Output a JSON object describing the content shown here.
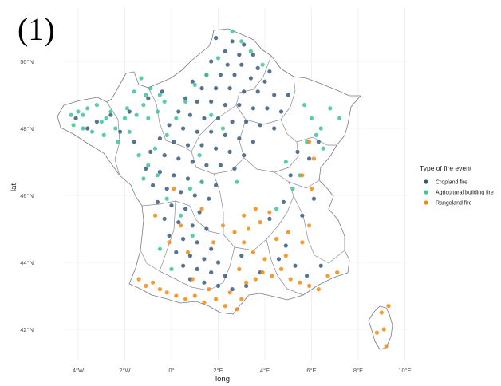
{
  "panel_tag": "(1)",
  "colors": {
    "cropland": "#3a5a7c",
    "agricultural_building": "#3cc49a",
    "rangeland": "#f28a0d",
    "border": "#7a7a8a",
    "grid": "#ebebeb"
  },
  "chart_data": {
    "type": "scatter",
    "map_region": "France",
    "xlabel": "long",
    "ylabel": "lat",
    "xlim": [
      -6,
      10
    ],
    "ylim": [
      41,
      51
    ],
    "x_ticks": [
      {
        "value": -4,
        "label": "4°W"
      },
      {
        "value": -2,
        "label": "2°W"
      },
      {
        "value": 0,
        "label": "0°"
      },
      {
        "value": 2,
        "label": "2°E"
      },
      {
        "value": 4,
        "label": "4°E"
      },
      {
        "value": 6,
        "label": "6°E"
      },
      {
        "value": 8,
        "label": "8°E"
      },
      {
        "value": 10,
        "label": "10°E"
      }
    ],
    "y_ticks": [
      {
        "value": 42,
        "label": "42°N"
      },
      {
        "value": 44,
        "label": "44°N"
      },
      {
        "value": 46,
        "label": "46°N"
      },
      {
        "value": 48,
        "label": "48°N"
      },
      {
        "value": 50,
        "label": "50°N"
      }
    ],
    "grid": true,
    "legend": {
      "title": "Type of fire event",
      "placement": "right",
      "entries": [
        {
          "label": "Cropland fire",
          "color": "#3a5a7c"
        },
        {
          "label": "Agricultural building fire",
          "color": "#3cc49a"
        },
        {
          "label": "Rangeland fire",
          "color": "#f28a0d"
        }
      ]
    },
    "series": [
      {
        "name": "Cropland fire",
        "color": "#3a5a7c",
        "points": [
          [
            1.9,
            50.7
          ],
          [
            2.6,
            50.6
          ],
          [
            3.1,
            50.5
          ],
          [
            2.3,
            50.3
          ],
          [
            2.9,
            50.2
          ],
          [
            3.5,
            50.2
          ],
          [
            1.7,
            50.0
          ],
          [
            2.4,
            49.9
          ],
          [
            3.0,
            49.9
          ],
          [
            3.7,
            49.8
          ],
          [
            4.2,
            49.7
          ],
          [
            1.5,
            49.6
          ],
          [
            2.1,
            49.6
          ],
          [
            2.7,
            49.6
          ],
          [
            3.4,
            49.5
          ],
          [
            4.0,
            49.4
          ],
          [
            0.9,
            49.4
          ],
          [
            1.3,
            49.2
          ],
          [
            1.9,
            49.2
          ],
          [
            2.5,
            49.2
          ],
          [
            3.1,
            49.1
          ],
          [
            3.7,
            49.1
          ],
          [
            4.4,
            49.0
          ],
          [
            5.0,
            49.0
          ],
          [
            0.6,
            48.9
          ],
          [
            1.1,
            48.8
          ],
          [
            1.7,
            48.8
          ],
          [
            2.3,
            48.7
          ],
          [
            2.9,
            48.7
          ],
          [
            3.5,
            48.6
          ],
          [
            4.1,
            48.6
          ],
          [
            4.7,
            48.5
          ],
          [
            0.3,
            48.5
          ],
          [
            0.8,
            48.4
          ],
          [
            1.4,
            48.3
          ],
          [
            2.0,
            48.3
          ],
          [
            2.6,
            48.2
          ],
          [
            3.2,
            48.2
          ],
          [
            3.8,
            48.1
          ],
          [
            4.4,
            48.0
          ],
          [
            -0.1,
            48.1
          ],
          [
            0.5,
            48.0
          ],
          [
            1.1,
            47.9
          ],
          [
            1.7,
            47.9
          ],
          [
            2.3,
            47.8
          ],
          [
            2.9,
            47.7
          ],
          [
            3.5,
            47.6
          ],
          [
            -0.5,
            47.7
          ],
          [
            0.1,
            47.6
          ],
          [
            0.7,
            47.5
          ],
          [
            1.3,
            47.5
          ],
          [
            1.9,
            47.4
          ],
          [
            2.5,
            47.3
          ],
          [
            3.1,
            47.2
          ],
          [
            -0.9,
            47.3
          ],
          [
            -0.3,
            47.2
          ],
          [
            0.3,
            47.1
          ],
          [
            0.9,
            47.0
          ],
          [
            1.5,
            46.9
          ],
          [
            2.1,
            46.9
          ],
          [
            2.7,
            46.8
          ],
          [
            -1.1,
            46.8
          ],
          [
            -0.5,
            46.7
          ],
          [
            0.1,
            46.6
          ],
          [
            0.7,
            46.5
          ],
          [
            1.3,
            46.4
          ],
          [
            1.9,
            46.3
          ],
          [
            -0.8,
            46.3
          ],
          [
            -0.2,
            46.2
          ],
          [
            0.4,
            46.1
          ],
          [
            1.0,
            46.0
          ],
          [
            1.6,
            45.9
          ],
          [
            -0.6,
            45.8
          ],
          [
            0.0,
            45.7
          ],
          [
            0.6,
            45.6
          ],
          [
            1.2,
            45.5
          ],
          [
            -0.3,
            45.3
          ],
          [
            0.3,
            45.2
          ],
          [
            0.9,
            45.1
          ],
          [
            1.5,
            45.0
          ],
          [
            -0.1,
            44.8
          ],
          [
            0.5,
            44.7
          ],
          [
            1.1,
            44.6
          ],
          [
            1.7,
            44.4
          ],
          [
            0.2,
            44.3
          ],
          [
            0.8,
            44.2
          ],
          [
            1.4,
            44.1
          ],
          [
            2.0,
            44.0
          ],
          [
            0.5,
            43.9
          ],
          [
            1.1,
            43.8
          ],
          [
            1.7,
            43.7
          ],
          [
            2.3,
            43.6
          ],
          [
            0.8,
            43.5
          ],
          [
            1.4,
            43.4
          ],
          [
            2.0,
            43.3
          ],
          [
            2.6,
            43.2
          ],
          [
            3.2,
            43.3
          ],
          [
            5.4,
            47.3
          ],
          [
            5.9,
            47.1
          ],
          [
            6.3,
            47.6
          ],
          [
            5.1,
            46.6
          ],
          [
            4.8,
            45.8
          ],
          [
            4.2,
            45.3
          ],
          [
            5.6,
            45.4
          ],
          [
            6.1,
            45.9
          ],
          [
            4.9,
            44.5
          ],
          [
            5.3,
            43.9
          ],
          [
            5.8,
            43.6
          ],
          [
            6.4,
            43.9
          ],
          [
            -2.6,
            48.4
          ],
          [
            -3.2,
            48.2
          ],
          [
            -1.8,
            48.5
          ],
          [
            -2.2,
            47.9
          ],
          [
            -1.6,
            47.6
          ],
          [
            -3.6,
            48.0
          ],
          [
            -4.1,
            48.3
          ],
          [
            -0.4,
            49.1
          ],
          [
            -1.0,
            48.9
          ],
          [
            4.6,
            44.1
          ],
          [
            3.8,
            43.7
          ],
          [
            3.0,
            44.2
          ]
        ]
      },
      {
        "name": "Agricultural building fire",
        "color": "#3cc49a",
        "points": [
          [
            -4.3,
            48.4
          ],
          [
            -4.0,
            48.5
          ],
          [
            -3.6,
            48.6
          ],
          [
            -3.2,
            48.7
          ],
          [
            -4.2,
            48.1
          ],
          [
            -3.8,
            48.0
          ],
          [
            -3.4,
            47.9
          ],
          [
            -3.0,
            48.2
          ],
          [
            -2.6,
            48.5
          ],
          [
            -2.9,
            47.8
          ],
          [
            -2.4,
            48.0
          ],
          [
            -2.0,
            48.3
          ],
          [
            -2.3,
            47.6
          ],
          [
            -1.8,
            47.9
          ],
          [
            -1.5,
            48.4
          ],
          [
            -1.2,
            48.7
          ],
          [
            -1.6,
            49.1
          ],
          [
            -1.3,
            49.5
          ],
          [
            -0.9,
            49.2
          ],
          [
            -0.5,
            49.0
          ],
          [
            -1.0,
            48.3
          ],
          [
            -0.6,
            48.5
          ],
          [
            -1.4,
            47.2
          ],
          [
            -1.0,
            46.9
          ],
          [
            -0.6,
            46.6
          ],
          [
            -1.2,
            46.5
          ],
          [
            -0.7,
            47.4
          ],
          [
            -0.2,
            47.8
          ],
          [
            0.2,
            48.3
          ],
          [
            0.6,
            48.8
          ],
          [
            1.0,
            49.3
          ],
          [
            1.5,
            49.6
          ],
          [
            2.0,
            50.1
          ],
          [
            2.6,
            50.9
          ],
          [
            3.0,
            50.6
          ],
          [
            3.4,
            50.3
          ],
          [
            3.9,
            49.9
          ],
          [
            1.2,
            47.2
          ],
          [
            0.8,
            46.2
          ],
          [
            1.7,
            48.4
          ],
          [
            2.2,
            48.0
          ],
          [
            -0.2,
            45.9
          ],
          [
            0.4,
            45.4
          ],
          [
            0.9,
            44.8
          ],
          [
            -0.5,
            44.4
          ],
          [
            0.0,
            43.8
          ],
          [
            6.0,
            48.3
          ],
          [
            6.4,
            48.0
          ],
          [
            6.8,
            48.6
          ],
          [
            7.2,
            48.3
          ],
          [
            6.2,
            47.8
          ],
          [
            5.8,
            47.6
          ],
          [
            6.5,
            47.4
          ],
          [
            5.7,
            48.7
          ],
          [
            4.9,
            47.0
          ],
          [
            5.5,
            46.6
          ],
          [
            5.2,
            46.2
          ],
          [
            4.5,
            45.6
          ],
          [
            1.3,
            46.4
          ],
          [
            2.8,
            46.4
          ],
          [
            -3.8,
            48.4
          ],
          [
            -2.8,
            48.3
          ],
          [
            -1.9,
            48.6
          ],
          [
            -1.1,
            49.0
          ],
          [
            -0.3,
            48.8
          ]
        ]
      },
      {
        "name": "Rangeland fire",
        "color": "#f28a0d",
        "points": [
          [
            -1.4,
            43.5
          ],
          [
            -1.1,
            43.3
          ],
          [
            -0.8,
            43.4
          ],
          [
            -0.5,
            43.2
          ],
          [
            -0.2,
            43.1
          ],
          [
            0.2,
            43.0
          ],
          [
            0.6,
            42.9
          ],
          [
            1.0,
            43.0
          ],
          [
            1.4,
            42.8
          ],
          [
            1.9,
            42.9
          ],
          [
            2.3,
            42.7
          ],
          [
            2.8,
            42.6
          ],
          [
            3.0,
            42.9
          ],
          [
            2.5,
            43.1
          ],
          [
            1.6,
            43.2
          ],
          [
            3.2,
            43.4
          ],
          [
            3.6,
            43.5
          ],
          [
            3.9,
            43.7
          ],
          [
            4.3,
            43.6
          ],
          [
            4.7,
            43.8
          ],
          [
            5.1,
            43.5
          ],
          [
            5.5,
            43.4
          ],
          [
            5.9,
            43.3
          ],
          [
            6.3,
            43.2
          ],
          [
            6.7,
            43.6
          ],
          [
            7.1,
            43.7
          ],
          [
            4.0,
            44.1
          ],
          [
            3.5,
            44.3
          ],
          [
            3.1,
            44.6
          ],
          [
            2.7,
            44.9
          ],
          [
            3.3,
            45.0
          ],
          [
            3.8,
            45.2
          ],
          [
            4.2,
            45.5
          ],
          [
            3.6,
            45.6
          ],
          [
            3.1,
            45.4
          ],
          [
            4.5,
            44.7
          ],
          [
            5.0,
            44.9
          ],
          [
            5.6,
            44.6
          ],
          [
            5.9,
            45.1
          ],
          [
            6.0,
            46.2
          ],
          [
            5.6,
            46.6
          ],
          [
            6.1,
            47.1
          ],
          [
            5.9,
            47.6
          ],
          [
            0.4,
            45.1
          ],
          [
            0.7,
            44.3
          ],
          [
            1.3,
            45.6
          ],
          [
            -0.7,
            45.4
          ],
          [
            0.1,
            46.2
          ],
          [
            9.0,
            42.5
          ],
          [
            9.3,
            42.7
          ],
          [
            9.1,
            42.0
          ],
          [
            8.8,
            41.9
          ],
          [
            9.2,
            41.5
          ],
          [
            1.8,
            44.6
          ],
          [
            2.2,
            45.1
          ],
          [
            4.9,
            44.2
          ],
          [
            2.9,
            43.8
          ],
          [
            -0.1,
            44.6
          ],
          [
            0.9,
            43.5
          ]
        ]
      }
    ]
  }
}
